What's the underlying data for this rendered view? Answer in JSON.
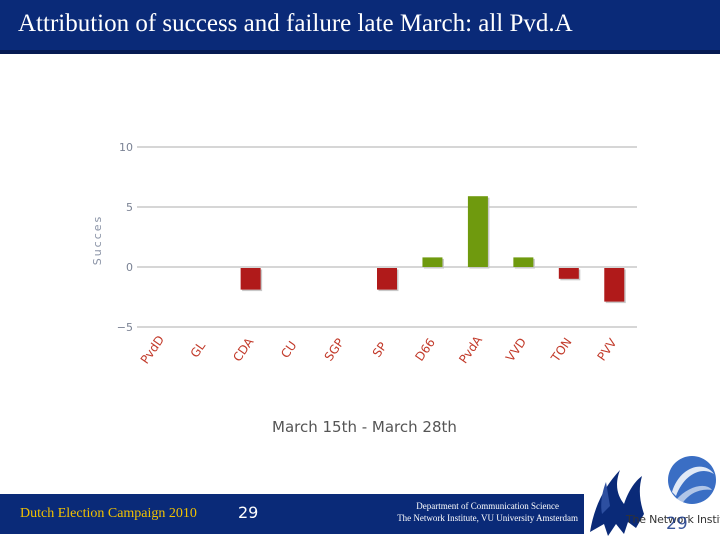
{
  "slide": {
    "title": "Attribution of success and failure late March: all Pvd.A",
    "footer_left": "Dutch Election Campaign 2010",
    "page_number": "29",
    "dept_line1": "Department of Communication Science",
    "dept_line2": "The Network Institute, VU University Amsterdam",
    "logo_caption": "The Network Institute",
    "logo_page": "29",
    "colors": {
      "title_bg": "#0a2a78",
      "footer_text": "#f2c200",
      "positive_bar": "#6f9a0e",
      "negative_bar": "#b01a1a"
    }
  },
  "chart_data": {
    "type": "bar",
    "title": "",
    "subtitle": "March 15th - March 28th",
    "ylabel": "Succes",
    "xlabel": "",
    "ylim": [
      -5,
      10
    ],
    "yticks": [
      10,
      5,
      0,
      -5
    ],
    "ytick_labels": [
      "10",
      "5",
      "0",
      "−5"
    ],
    "grid": true,
    "categories": [
      "PvdD",
      "GL",
      "CDA",
      "CU",
      "SGP",
      "SP",
      "D66",
      "PvdA",
      "VVD",
      "TON",
      "PVV"
    ],
    "values": [
      0,
      0,
      -1.8,
      0,
      0,
      -1.8,
      0.8,
      5.9,
      0.8,
      -0.9,
      -2.8
    ]
  }
}
